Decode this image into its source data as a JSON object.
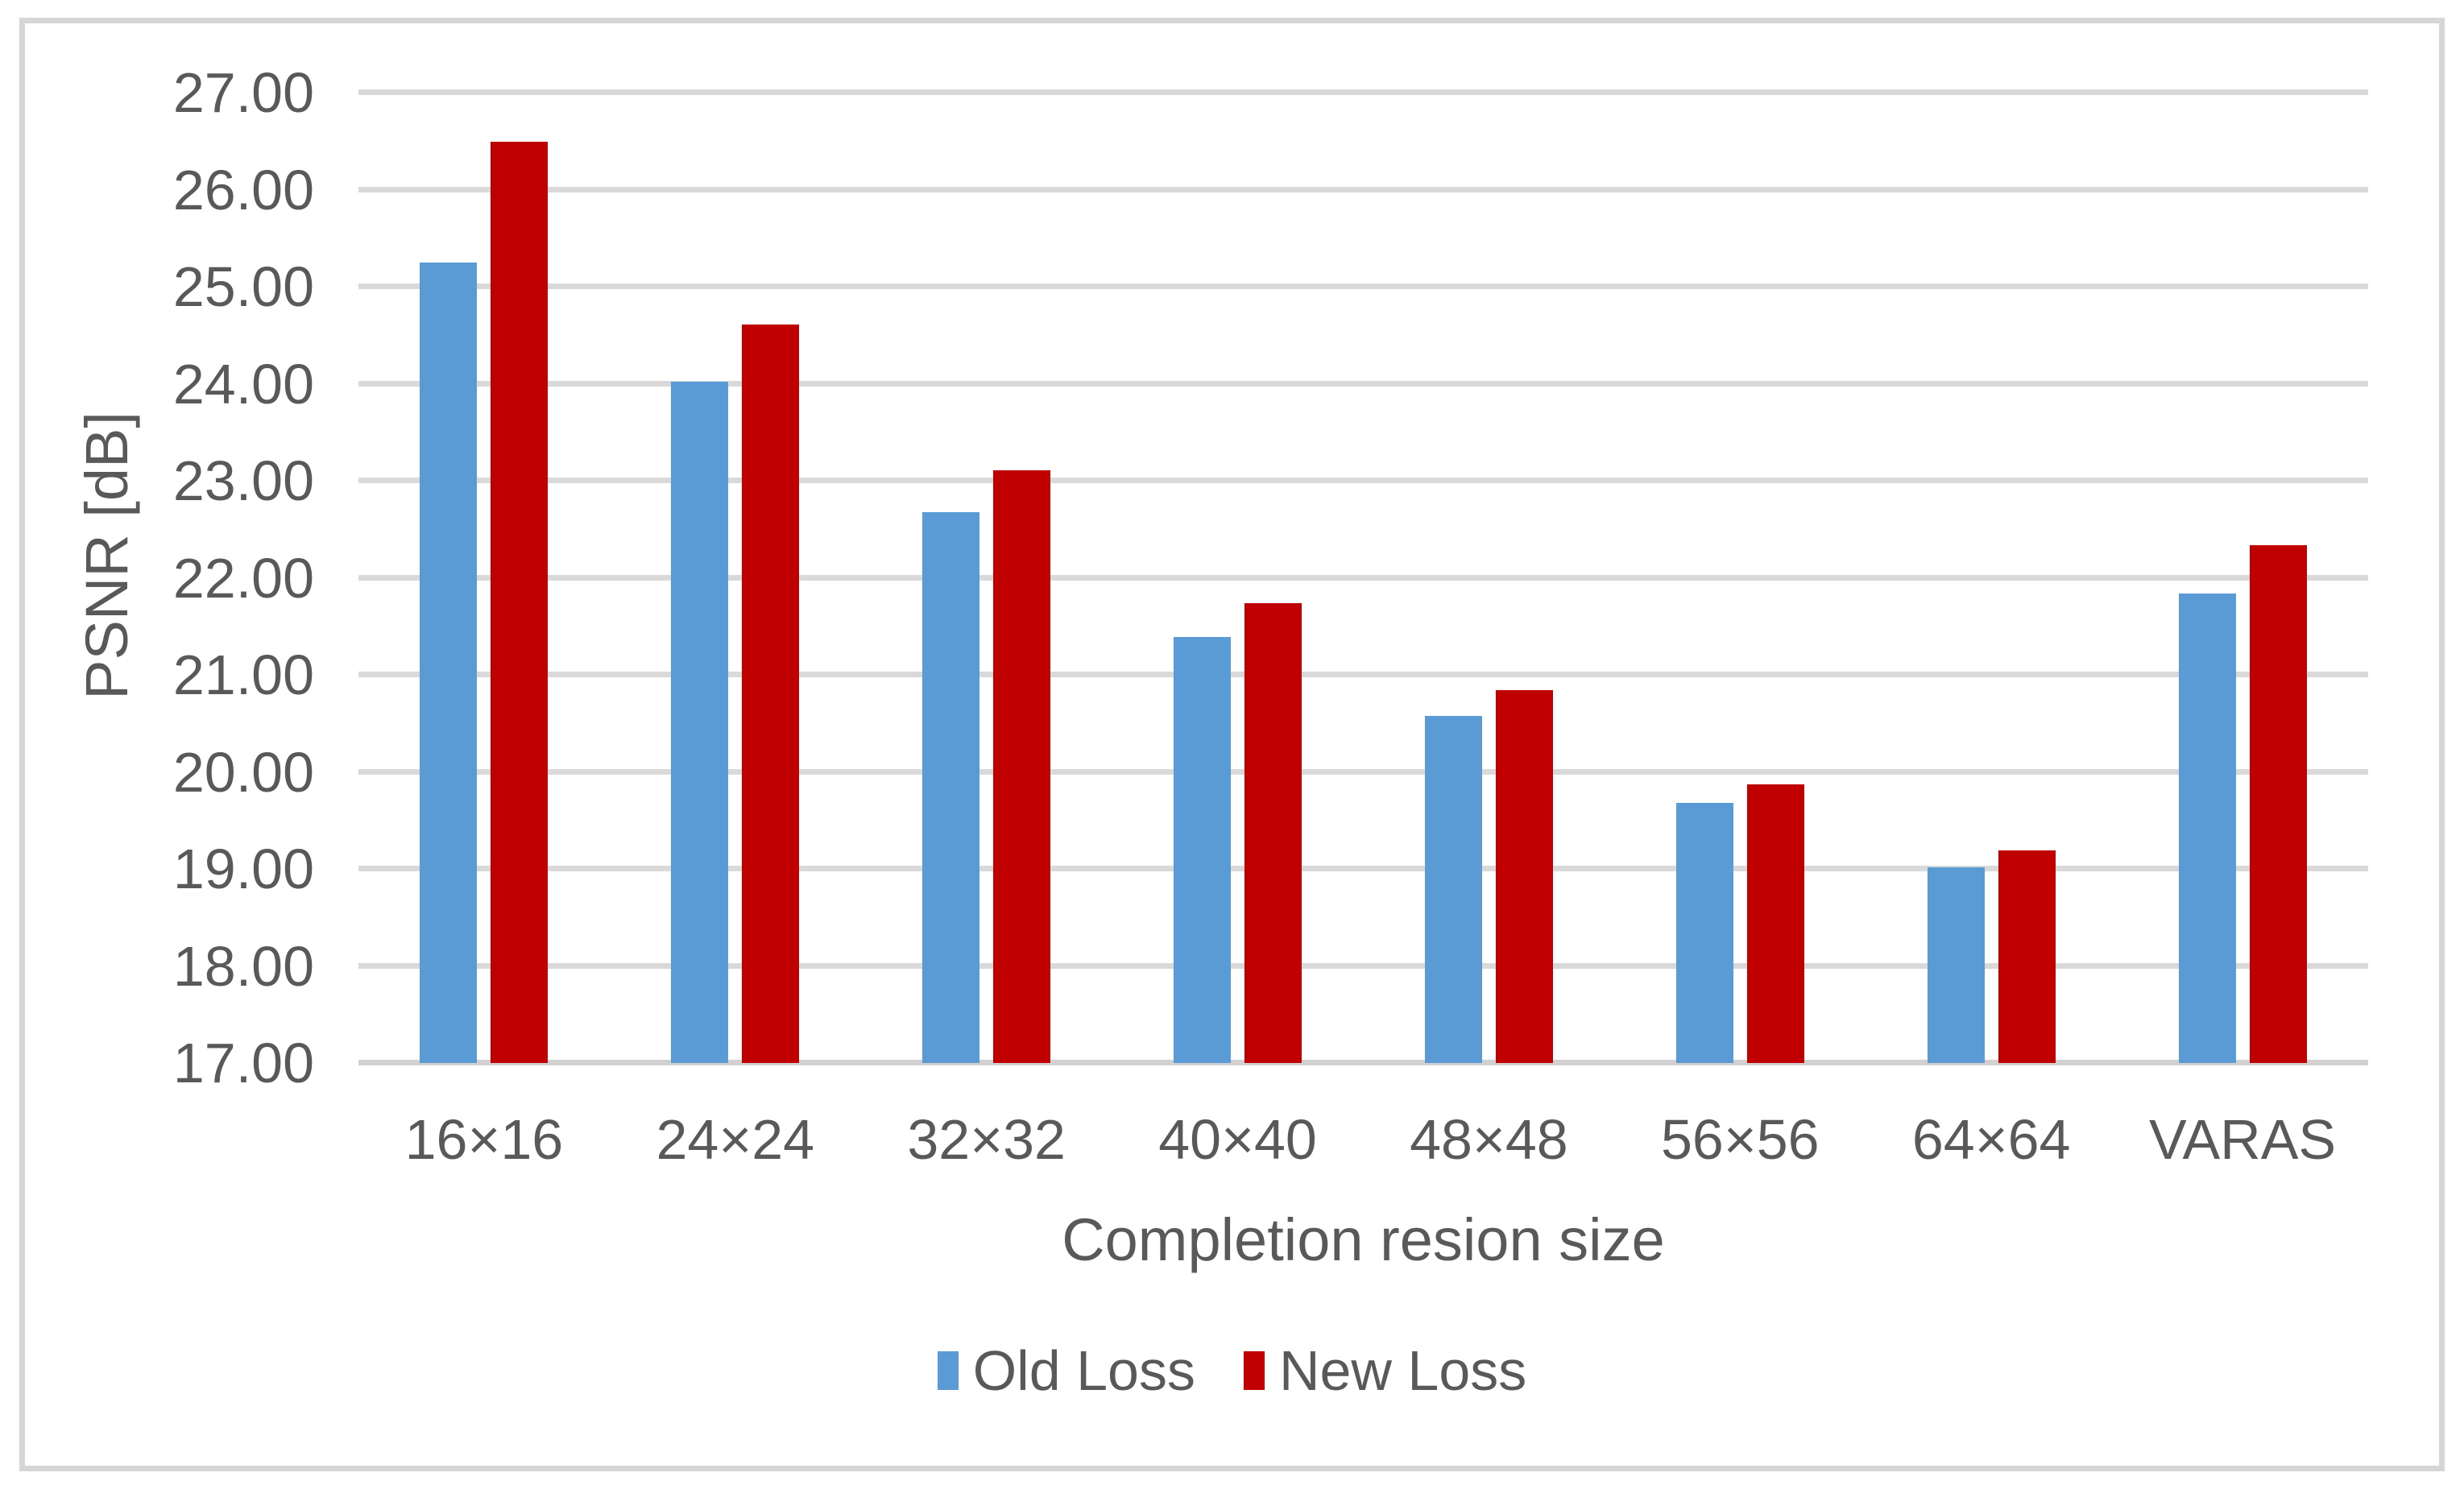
{
  "chart_data": {
    "type": "bar",
    "categories": [
      "16×16",
      "24×24",
      "32×32",
      "40×40",
      "48×48",
      "56×56",
      "64×64",
      "VARAS"
    ],
    "series": [
      {
        "name": "Old Loss",
        "color": "#5b9bd5",
        "values": [
          25.25,
          24.02,
          22.68,
          21.39,
          20.58,
          19.68,
          19.02,
          21.84
        ]
      },
      {
        "name": "New Loss",
        "color": "#c00000",
        "values": [
          26.49,
          24.61,
          23.11,
          21.74,
          20.84,
          19.87,
          19.19,
          22.34
        ]
      }
    ],
    "title": "",
    "xlabel": "Completion resion size",
    "ylabel": "PSNR [dB]",
    "ylim": [
      17,
      27
    ],
    "ytick_step": 1,
    "ytick_decimals": 2,
    "grid": "horizontal-on",
    "legend_position": "bottom"
  },
  "colors": {
    "background": "#ffffff",
    "frame_border": "#d6d6d6",
    "gridline": "#d9d9d9",
    "axis_line": "#d2d0d0",
    "text": "#595959",
    "old_loss": "#5b9bd5",
    "new_loss": "#c00000"
  }
}
